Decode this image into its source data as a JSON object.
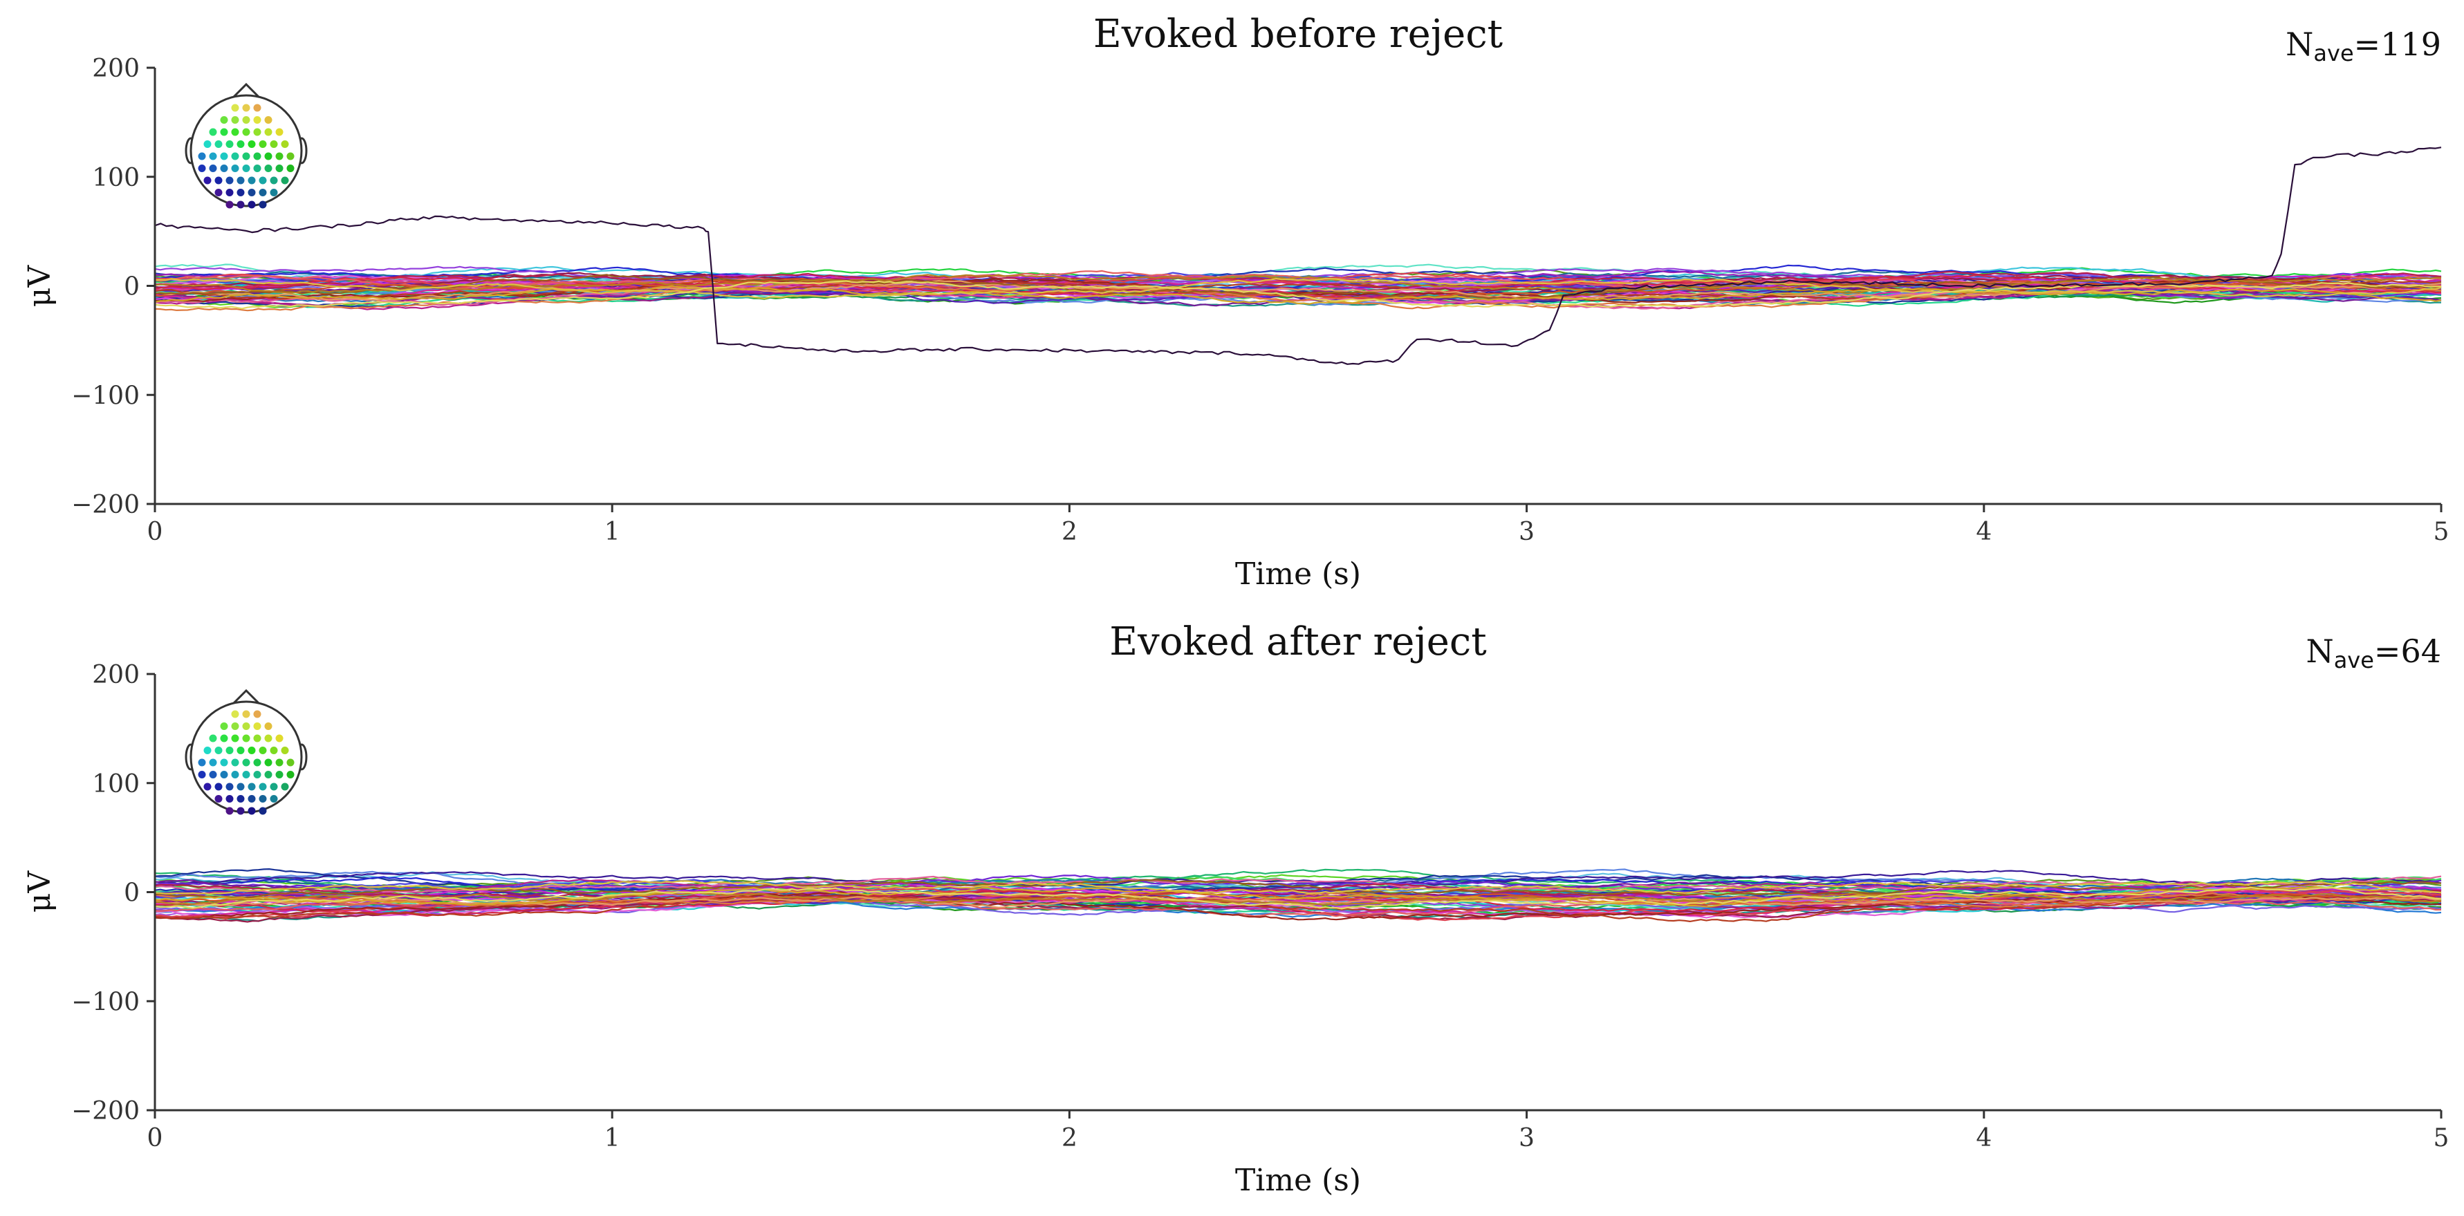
{
  "chart_data": [
    {
      "type": "line",
      "title": "Evoked before reject",
      "nave_label": "N",
      "nave_sub": "ave",
      "nave_value": "=119",
      "xlabel": "Time (s)",
      "ylabel": "μV",
      "xlim": [
        0,
        5
      ],
      "ylim": [
        -200,
        200
      ],
      "xticks": [
        0,
        1,
        2,
        3,
        4,
        5
      ],
      "yticks": [
        200,
        100,
        0,
        -100,
        -200
      ],
      "ytick_labels": [
        "200",
        "100",
        "0",
        "−100",
        "−200"
      ],
      "grid": false,
      "num_channels": 60,
      "channel_band_uV": [
        -25,
        20
      ],
      "outlier_channel": {
        "color": "#2a0f3a",
        "points": [
          [
            0,
            56
          ],
          [
            0.2,
            50
          ],
          [
            0.4,
            55
          ],
          [
            0.6,
            63
          ],
          [
            0.8,
            60
          ],
          [
            1.0,
            58
          ],
          [
            1.2,
            53
          ],
          [
            1.21,
            50
          ],
          [
            1.23,
            -52
          ],
          [
            1.5,
            -60
          ],
          [
            1.8,
            -58
          ],
          [
            2.1,
            -60
          ],
          [
            2.4,
            -62
          ],
          [
            2.62,
            -72
          ],
          [
            2.72,
            -68
          ],
          [
            2.76,
            -48
          ],
          [
            2.9,
            -52
          ],
          [
            2.98,
            -55
          ],
          [
            3.05,
            -40
          ],
          [
            3.08,
            -10
          ],
          [
            3.2,
            -2
          ],
          [
            3.6,
            4
          ],
          [
            4.0,
            0
          ],
          [
            4.4,
            2
          ],
          [
            4.63,
            8
          ],
          [
            4.65,
            30
          ],
          [
            4.68,
            110
          ],
          [
            4.72,
            118
          ],
          [
            4.9,
            122
          ],
          [
            5.0,
            127
          ]
        ]
      }
    },
    {
      "type": "line",
      "title": "Evoked after reject",
      "nave_label": "N",
      "nave_sub": "ave",
      "nave_value": "=64",
      "xlabel": "Time (s)",
      "ylabel": "μV",
      "xlim": [
        0,
        5
      ],
      "ylim": [
        -200,
        200
      ],
      "xticks": [
        0,
        1,
        2,
        3,
        4,
        5
      ],
      "yticks": [
        200,
        100,
        0,
        -100,
        -200
      ],
      "ytick_labels": [
        "200",
        "100",
        "0",
        "−100",
        "−200"
      ],
      "grid": false,
      "num_channels": 60,
      "channel_band_uV": [
        -35,
        25
      ]
    }
  ],
  "sensor_legend": {
    "shape": "head-outline",
    "dots": 60
  }
}
